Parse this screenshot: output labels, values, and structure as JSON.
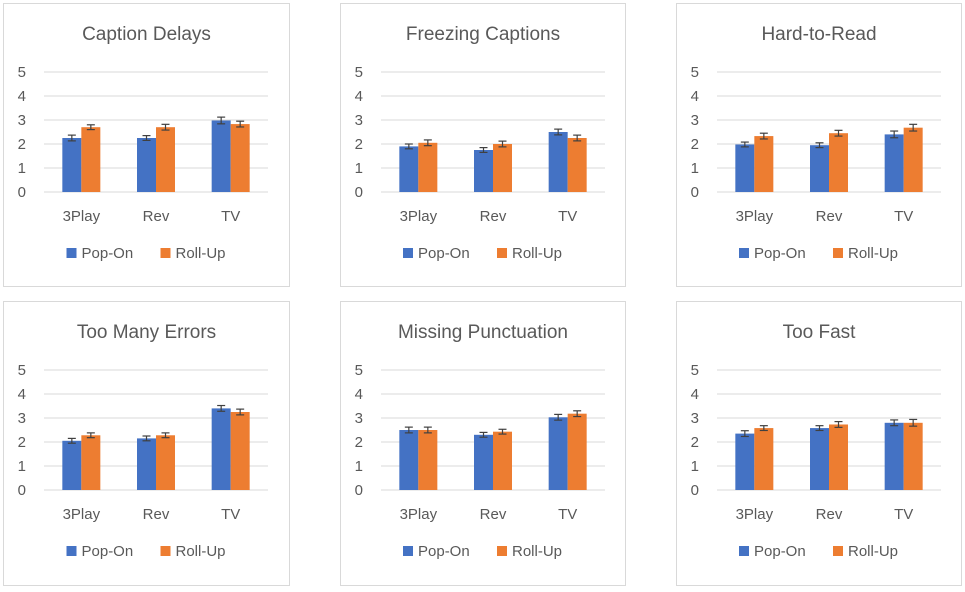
{
  "colors": {
    "pop_on": "#4472C4",
    "roll_up": "#ED7D31",
    "grid": "#d9d9d9",
    "text": "#595959",
    "error_bar": "#404040"
  },
  "chart_data": [
    {
      "type": "bar",
      "title": "Caption Delays",
      "categories": [
        "3Play",
        "Rev",
        "TV"
      ],
      "ylim": [
        0,
        5
      ],
      "yticks": [
        "0",
        "1",
        "2",
        "3",
        "4",
        "5"
      ],
      "grid": true,
      "legend": "bottom",
      "series": [
        {
          "name": "Pop-On",
          "values": [
            2.25,
            2.25,
            2.98
          ],
          "errors": [
            0.12,
            0.1,
            0.14
          ]
        },
        {
          "name": "Roll-Up",
          "values": [
            2.7,
            2.7,
            2.83
          ],
          "errors": [
            0.1,
            0.12,
            0.12
          ]
        }
      ]
    },
    {
      "type": "bar",
      "title": "Freezing Captions",
      "categories": [
        "3Play",
        "Rev",
        "TV"
      ],
      "ylim": [
        0,
        5
      ],
      "yticks": [
        "0",
        "1",
        "2",
        "3",
        "4",
        "5"
      ],
      "grid": true,
      "legend": "bottom",
      "series": [
        {
          "name": "Pop-On",
          "values": [
            1.9,
            1.75,
            2.5
          ],
          "errors": [
            0.1,
            0.1,
            0.12
          ]
        },
        {
          "name": "Roll-Up",
          "values": [
            2.05,
            2.0,
            2.25
          ],
          "errors": [
            0.12,
            0.12,
            0.12
          ]
        }
      ]
    },
    {
      "type": "bar",
      "title": "Hard-to-Read",
      "categories": [
        "3Play",
        "Rev",
        "TV"
      ],
      "ylim": [
        0,
        5
      ],
      "yticks": [
        "0",
        "1",
        "2",
        "3",
        "4",
        "5"
      ],
      "grid": true,
      "legend": "bottom",
      "series": [
        {
          "name": "Pop-On",
          "values": [
            1.98,
            1.95,
            2.4
          ],
          "errors": [
            0.1,
            0.1,
            0.14
          ]
        },
        {
          "name": "Roll-Up",
          "values": [
            2.33,
            2.45,
            2.68
          ],
          "errors": [
            0.12,
            0.12,
            0.14
          ]
        }
      ]
    },
    {
      "type": "bar",
      "title": "Too Many Errors",
      "categories": [
        "3Play",
        "Rev",
        "TV"
      ],
      "ylim": [
        0,
        5
      ],
      "yticks": [
        "0",
        "1",
        "2",
        "3",
        "4",
        "5"
      ],
      "grid": true,
      "legend": "bottom",
      "series": [
        {
          "name": "Pop-On",
          "values": [
            2.05,
            2.15,
            3.4
          ],
          "errors": [
            0.1,
            0.1,
            0.12
          ]
        },
        {
          "name": "Roll-Up",
          "values": [
            2.28,
            2.28,
            3.25
          ],
          "errors": [
            0.1,
            0.1,
            0.12
          ]
        }
      ]
    },
    {
      "type": "bar",
      "title": "Missing Punctuation",
      "categories": [
        "3Play",
        "Rev",
        "TV"
      ],
      "ylim": [
        0,
        5
      ],
      "yticks": [
        "0",
        "1",
        "2",
        "3",
        "4",
        "5"
      ],
      "grid": true,
      "legend": "bottom",
      "series": [
        {
          "name": "Pop-On",
          "values": [
            2.5,
            2.3,
            3.03
          ],
          "errors": [
            0.12,
            0.1,
            0.12
          ]
        },
        {
          "name": "Roll-Up",
          "values": [
            2.5,
            2.43,
            3.18
          ],
          "errors": [
            0.12,
            0.1,
            0.12
          ]
        }
      ]
    },
    {
      "type": "bar",
      "title": "Too Fast",
      "categories": [
        "3Play",
        "Rev",
        "TV"
      ],
      "ylim": [
        0,
        5
      ],
      "yticks": [
        "0",
        "1",
        "2",
        "3",
        "4",
        "5"
      ],
      "grid": true,
      "legend": "bottom",
      "series": [
        {
          "name": "Pop-On",
          "values": [
            2.35,
            2.58,
            2.8
          ],
          "errors": [
            0.12,
            0.1,
            0.12
          ]
        },
        {
          "name": "Roll-Up",
          "values": [
            2.58,
            2.73,
            2.8
          ],
          "errors": [
            0.1,
            0.12,
            0.14
          ]
        }
      ]
    }
  ]
}
